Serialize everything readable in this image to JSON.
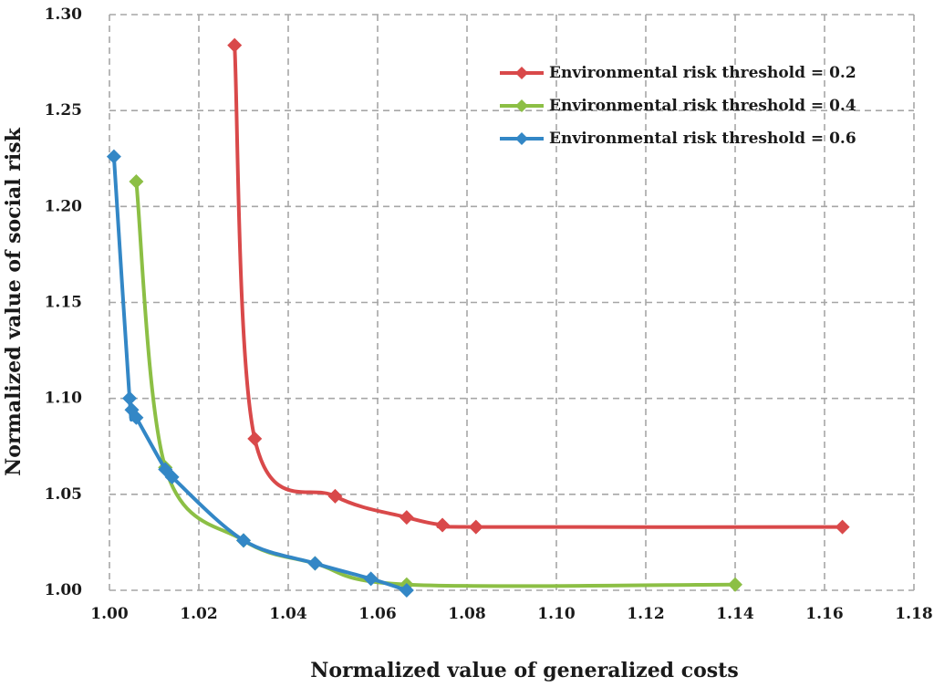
{
  "chart_data": {
    "type": "line",
    "title": "",
    "xlabel": "Normalized value of generalized costs",
    "ylabel": "Normalized value of social risk",
    "xlim": [
      1.0,
      1.18
    ],
    "ylim": [
      1.0,
      1.3
    ],
    "xticks": [
      "1.00",
      "1.02",
      "1.04",
      "1.06",
      "1.08",
      "1.10",
      "1.12",
      "1.14",
      "1.16",
      "1.18"
    ],
    "yticks": [
      "1.00",
      "1.05",
      "1.10",
      "1.15",
      "1.20",
      "1.25",
      "1.30"
    ],
    "grid": true,
    "legend_position": "top-right",
    "series": [
      {
        "name": "Environmental risk threshold = 0.2",
        "color": "#d9494a",
        "marker": "diamond",
        "points": [
          [
            1.028,
            1.284
          ],
          [
            1.0325,
            1.079
          ],
          [
            1.0505,
            1.049
          ],
          [
            1.0665,
            1.038
          ],
          [
            1.0745,
            1.034
          ],
          [
            1.082,
            1.033
          ],
          [
            1.164,
            1.033
          ]
        ]
      },
      {
        "name": "Environmental risk threshold = 0.4",
        "color": "#8cbf45",
        "marker": "diamond",
        "points": [
          [
            1.006,
            1.213
          ],
          [
            1.0125,
            1.064
          ],
          [
            1.03,
            1.026
          ],
          [
            1.046,
            1.014
          ],
          [
            1.0665,
            1.003
          ],
          [
            1.14,
            1.003
          ]
        ]
      },
      {
        "name": "Environmental risk threshold = 0.6",
        "color": "#3387c6",
        "marker": "diamond",
        "points": [
          [
            1.001,
            1.226
          ],
          [
            1.0045,
            1.1
          ],
          [
            1.005,
            1.094
          ],
          [
            1.006,
            1.09
          ],
          [
            1.0125,
            1.063
          ],
          [
            1.014,
            1.059
          ],
          [
            1.03,
            1.026
          ],
          [
            1.046,
            1.014
          ],
          [
            1.0585,
            1.006
          ],
          [
            1.0665,
            1.0
          ]
        ]
      }
    ]
  }
}
